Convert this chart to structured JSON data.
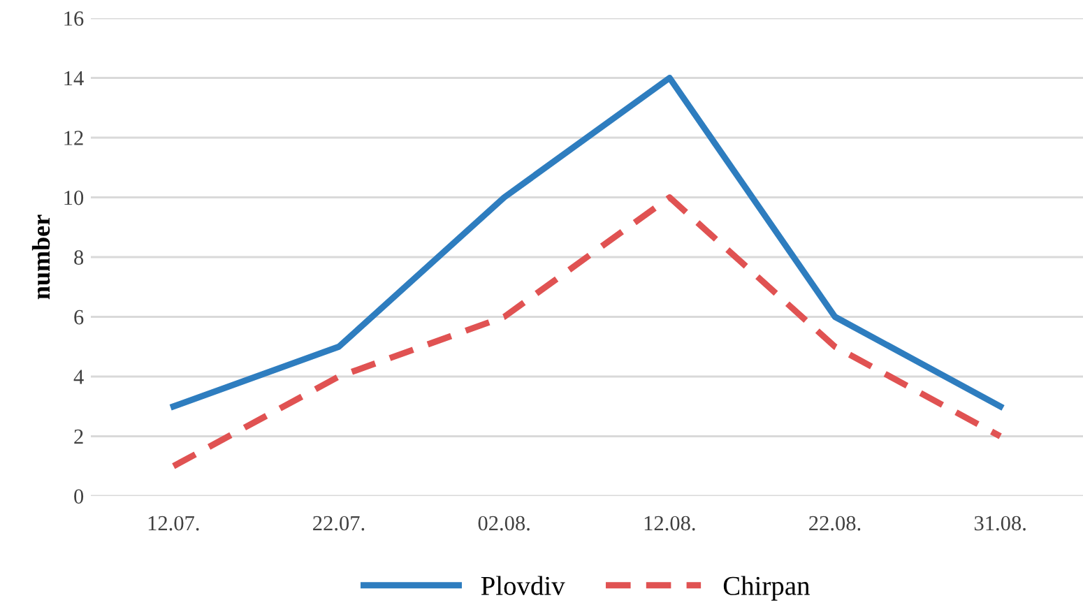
{
  "chart_data": {
    "type": "line",
    "ylabel": "number",
    "categories": [
      "12.07.",
      "22.07.",
      "02.08.",
      "12.08.",
      "22.08.",
      "31.08."
    ],
    "series": [
      {
        "name": "Plovdiv",
        "color": "#2e7dbf",
        "values": [
          3,
          5,
          10,
          14,
          6,
          3
        ],
        "line_style": "solid"
      },
      {
        "name": "Chirpan",
        "color": "#e05252",
        "values": [
          1,
          4,
          6,
          10,
          5,
          2
        ],
        "line_style": "dashed"
      }
    ],
    "ylim": [
      0,
      16
    ],
    "yticks": [
      0,
      2,
      4,
      6,
      8,
      10,
      12,
      14,
      16
    ],
    "grid": "y",
    "legend": "bottom",
    "marker": "none"
  }
}
